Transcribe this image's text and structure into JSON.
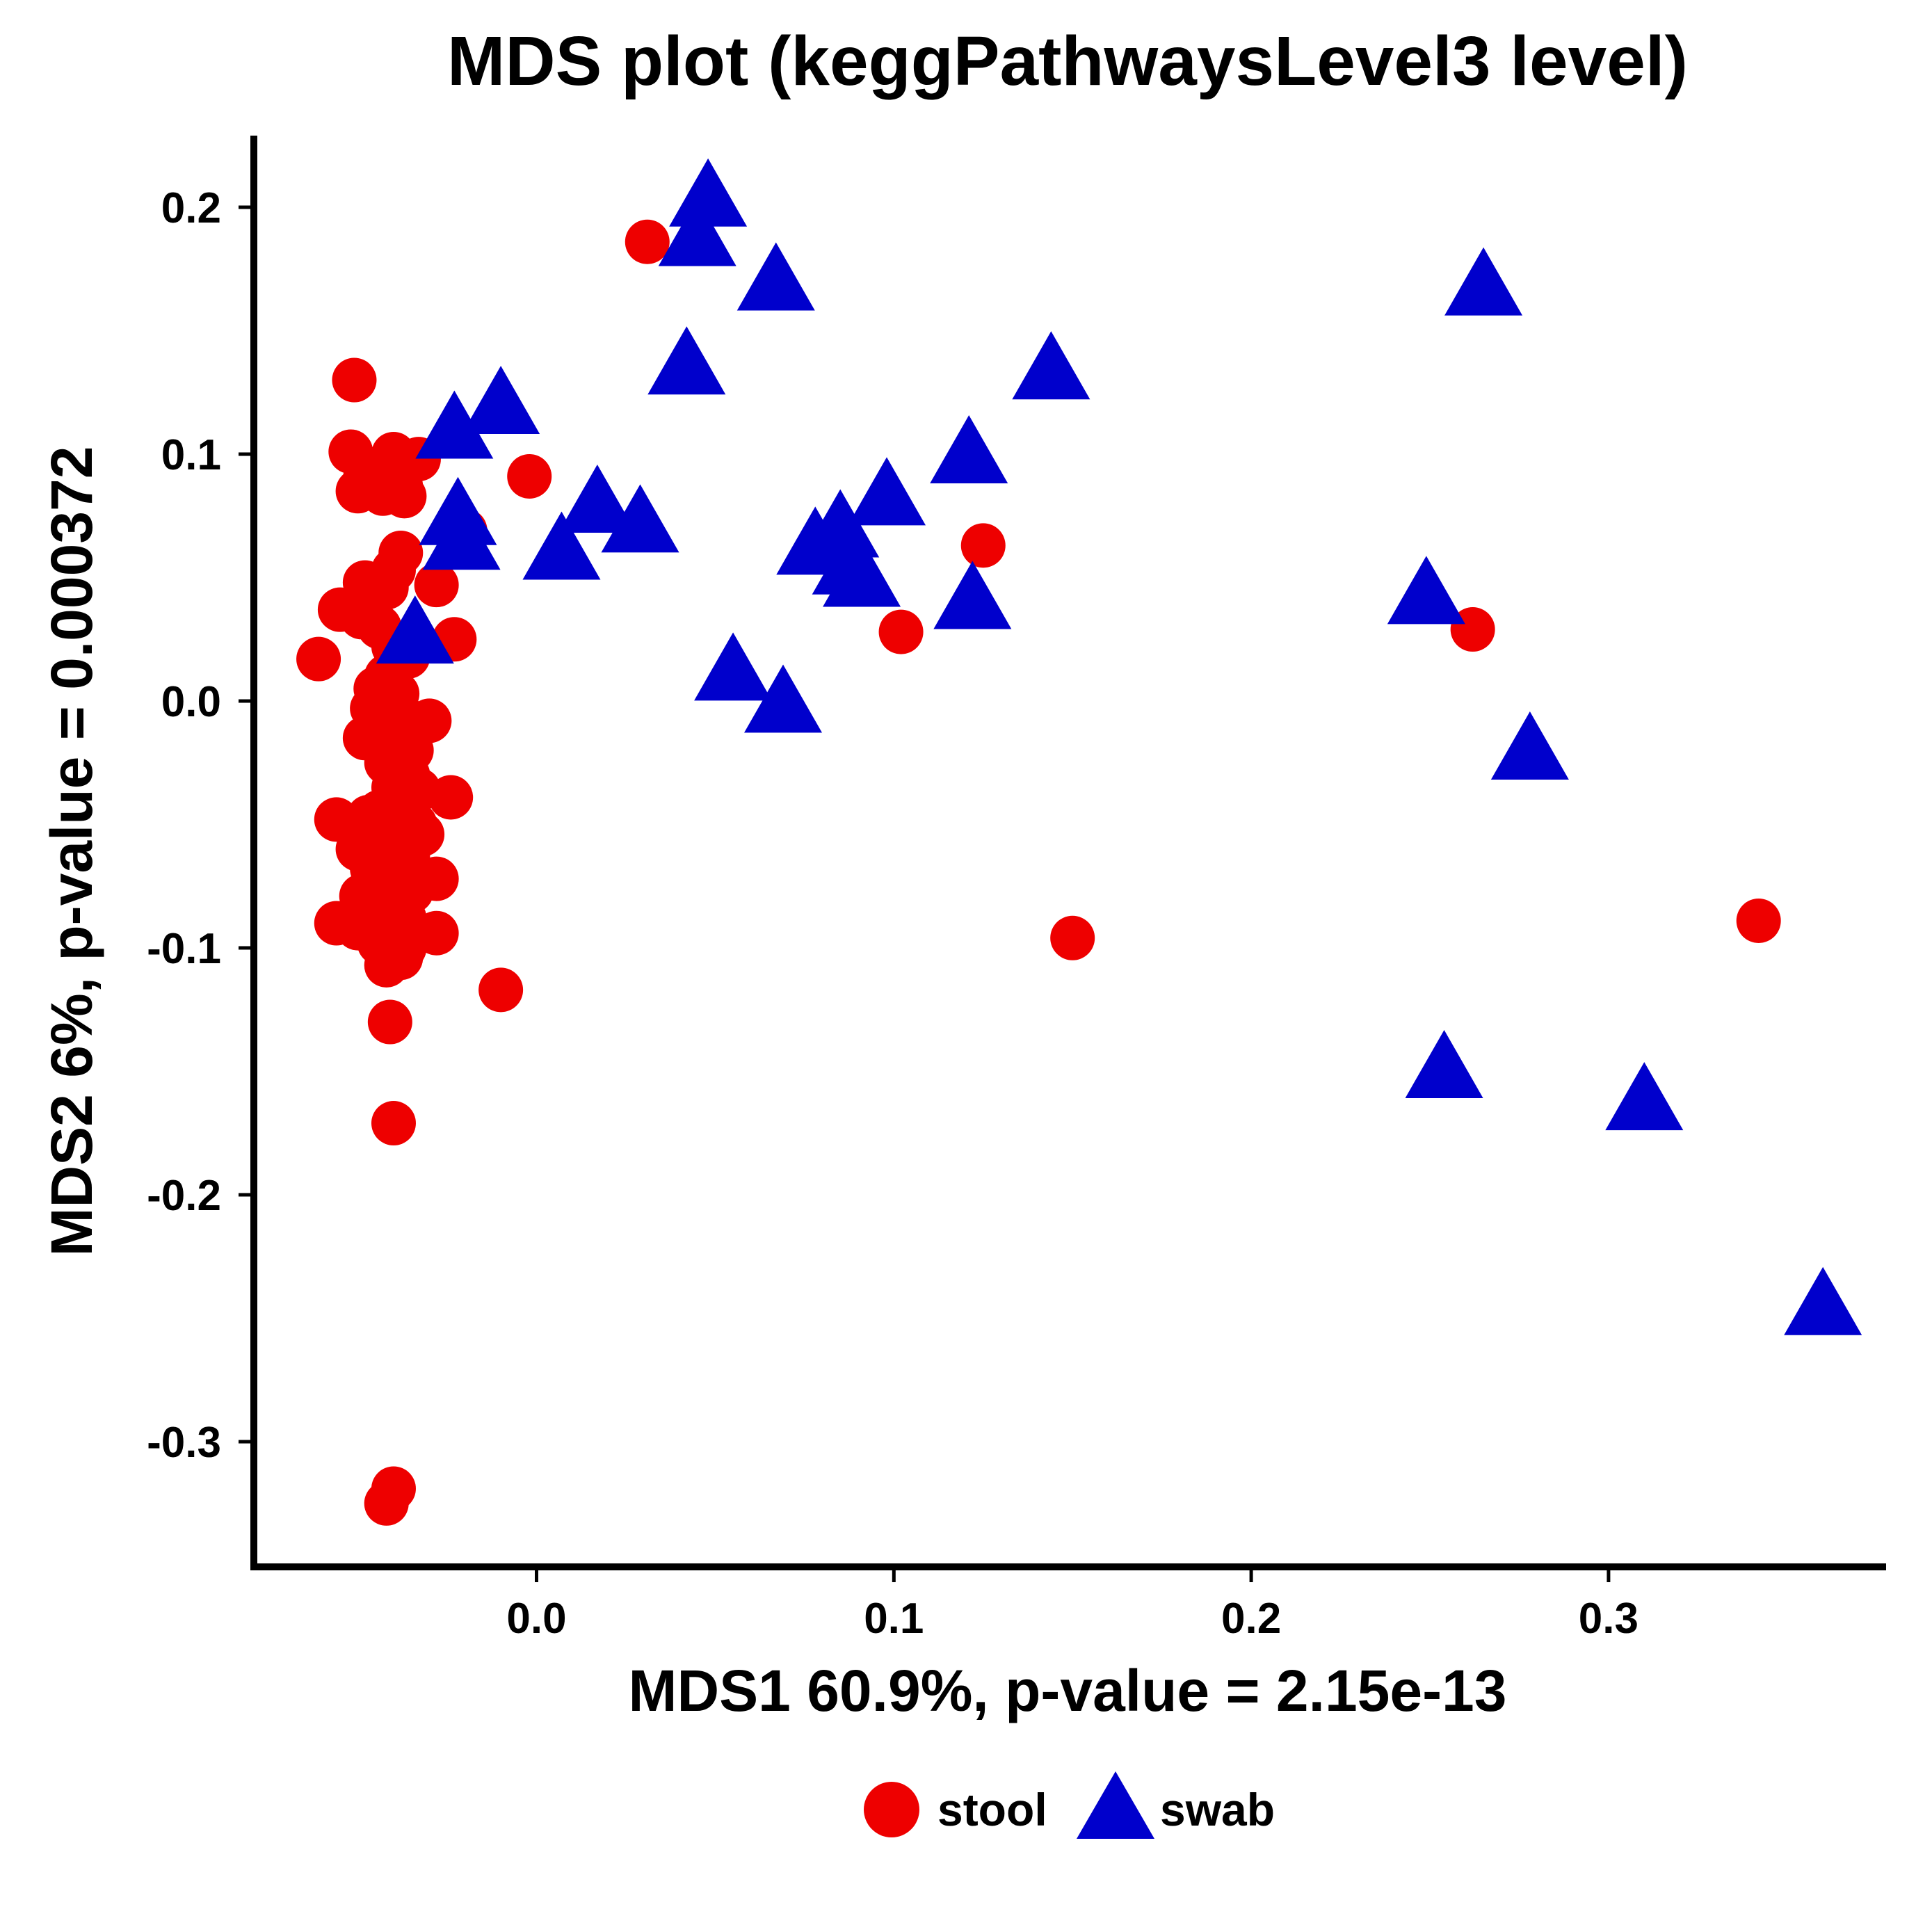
{
  "colors": {
    "stool": "#ee0000",
    "swab": "#0000cc",
    "axis": "#000000"
  },
  "chart_data": {
    "type": "scatter",
    "title": "MDS plot (keggPathwaysLevel3 level)",
    "xlabel": "MDS1 60.9%, p-value = 2.15e-13",
    "ylabel": "MDS2 6%, p-value = 0.000372",
    "xlim": [
      -0.08,
      0.38
    ],
    "ylim": [
      -0.35,
      0.23
    ],
    "xticks": [
      {
        "value": 0.0,
        "label": "0.0"
      },
      {
        "value": 0.1,
        "label": "0.1"
      },
      {
        "value": 0.2,
        "label": "0.2"
      },
      {
        "value": 0.3,
        "label": "0.3"
      }
    ],
    "yticks": [
      {
        "value": 0.2,
        "label": "0.2"
      },
      {
        "value": 0.1,
        "label": "0.1"
      },
      {
        "value": 0.0,
        "label": "0.0"
      },
      {
        "value": -0.1,
        "label": "-0.1"
      },
      {
        "value": -0.2,
        "label": "-0.2"
      },
      {
        "value": -0.3,
        "label": "-0.3"
      }
    ],
    "grid": false,
    "legend_position": "bottom",
    "series": [
      {
        "name": "stool",
        "marker": "circle",
        "points": [
          [
            0.031,
            0.186
          ],
          [
            -0.051,
            0.13
          ],
          [
            -0.052,
            0.101
          ],
          [
            -0.04,
            0.1
          ],
          [
            -0.033,
            0.098
          ],
          [
            -0.044,
            0.093
          ],
          [
            -0.048,
            0.09
          ],
          [
            -0.038,
            0.087
          ],
          [
            -0.05,
            0.085
          ],
          [
            -0.043,
            0.084
          ],
          [
            -0.037,
            0.083
          ],
          [
            -0.002,
            0.091
          ],
          [
            -0.02,
            0.069
          ],
          [
            -0.038,
            0.06
          ],
          [
            -0.04,
            0.053
          ],
          [
            -0.048,
            0.048
          ],
          [
            -0.028,
            0.047
          ],
          [
            -0.042,
            0.046
          ],
          [
            -0.055,
            0.037
          ],
          [
            -0.049,
            0.034
          ],
          [
            -0.044,
            0.03
          ],
          [
            -0.023,
            0.025
          ],
          [
            -0.04,
            0.022
          ],
          [
            -0.036,
            0.018
          ],
          [
            -0.061,
            0.017
          ],
          [
            -0.042,
            0.01
          ],
          [
            -0.045,
            0.005
          ],
          [
            -0.039,
            0.003
          ],
          [
            -0.046,
            -0.003
          ],
          [
            -0.041,
            -0.005
          ],
          [
            -0.037,
            -0.007
          ],
          [
            -0.03,
            -0.008
          ],
          [
            -0.044,
            -0.01
          ],
          [
            -0.048,
            -0.015
          ],
          [
            -0.04,
            -0.015
          ],
          [
            -0.035,
            -0.02
          ],
          [
            -0.042,
            -0.025
          ],
          [
            -0.036,
            -0.03
          ],
          [
            -0.04,
            -0.035
          ],
          [
            -0.033,
            -0.036
          ],
          [
            -0.024,
            -0.039
          ],
          [
            -0.038,
            -0.04
          ],
          [
            -0.044,
            -0.045
          ],
          [
            -0.047,
            -0.047
          ],
          [
            -0.056,
            -0.048
          ],
          [
            -0.034,
            -0.05
          ],
          [
            -0.041,
            -0.052
          ],
          [
            -0.038,
            -0.054
          ],
          [
            -0.032,
            -0.054
          ],
          [
            -0.045,
            -0.056
          ],
          [
            -0.04,
            -0.058
          ],
          [
            -0.05,
            -0.06
          ],
          [
            -0.036,
            -0.062
          ],
          [
            -0.042,
            -0.065
          ],
          [
            -0.046,
            -0.068
          ],
          [
            -0.038,
            -0.07
          ],
          [
            -0.028,
            -0.072
          ],
          [
            -0.043,
            -0.074
          ],
          [
            -0.035,
            -0.077
          ],
          [
            -0.049,
            -0.079
          ],
          [
            -0.041,
            -0.082
          ],
          [
            -0.045,
            -0.085
          ],
          [
            -0.037,
            -0.088
          ],
          [
            -0.056,
            -0.09
          ],
          [
            -0.05,
            -0.092
          ],
          [
            -0.04,
            -0.092
          ],
          [
            -0.028,
            -0.094
          ],
          [
            -0.044,
            -0.098
          ],
          [
            -0.037,
            -0.1
          ],
          [
            -0.038,
            -0.104
          ],
          [
            -0.042,
            -0.107
          ],
          [
            -0.01,
            -0.117
          ],
          [
            -0.041,
            -0.13
          ],
          [
            -0.04,
            -0.171
          ],
          [
            -0.04,
            -0.319
          ],
          [
            -0.042,
            -0.325
          ],
          [
            0.102,
            0.028
          ],
          [
            0.125,
            0.063
          ],
          [
            0.15,
            -0.096
          ],
          [
            0.262,
            0.029
          ],
          [
            0.342,
            -0.089
          ]
        ]
      },
      {
        "name": "swab",
        "marker": "triangle",
        "points": [
          [
            0.048,
            0.204
          ],
          [
            0.045,
            0.188
          ],
          [
            0.067,
            0.17
          ],
          [
            0.042,
            0.136
          ],
          [
            -0.01,
            0.12
          ],
          [
            -0.023,
            0.11
          ],
          [
            -0.022,
            0.075
          ],
          [
            -0.021,
            0.065
          ],
          [
            0.007,
            0.061
          ],
          [
            0.017,
            0.08
          ],
          [
            0.029,
            0.072
          ],
          [
            -0.034,
            0.027
          ],
          [
            0.055,
            0.012
          ],
          [
            0.069,
            -0.001
          ],
          [
            0.078,
            0.063
          ],
          [
            0.085,
            0.07
          ],
          [
            0.088,
            0.055
          ],
          [
            0.091,
            0.05
          ],
          [
            0.098,
            0.083
          ],
          [
            0.121,
            0.1
          ],
          [
            0.122,
            0.041
          ],
          [
            0.144,
            0.134
          ],
          [
            0.265,
            0.168
          ],
          [
            0.249,
            0.043
          ],
          [
            0.278,
            -0.02
          ],
          [
            0.254,
            -0.149
          ],
          [
            0.31,
            -0.162
          ],
          [
            0.36,
            -0.245
          ]
        ]
      }
    ]
  }
}
